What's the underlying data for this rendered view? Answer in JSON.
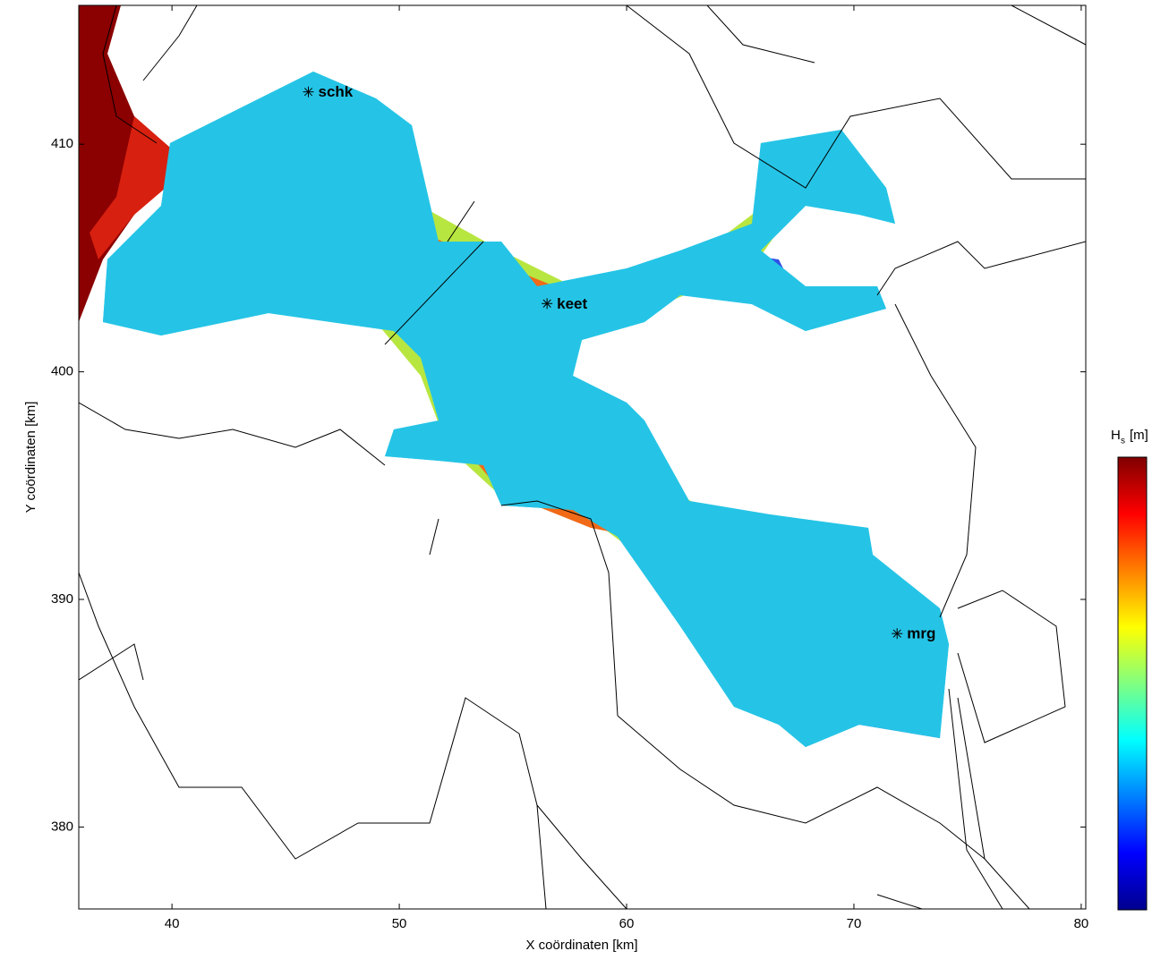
{
  "chart_data": {
    "type": "map",
    "xlabel": "X coördinaten [km]",
    "ylabel": "Y coördinaten [km]",
    "xlim": [
      35.9,
      80.2
    ],
    "ylim": [
      376.4,
      416.1
    ],
    "xticks": [
      40,
      50,
      60,
      70,
      80
    ],
    "yticks": [
      380,
      390,
      400,
      410
    ],
    "stations": [
      {
        "name": "schk",
        "x": 46.0,
        "y": 412.3
      },
      {
        "name": "keet",
        "x": 56.5,
        "y": 403.0
      },
      {
        "name": "mrg",
        "x": 71.9,
        "y": 388.5
      }
    ],
    "colorbar": {
      "symbol": "H",
      "subscript": "s",
      "unit": "[m]",
      "colormap": [
        "#00008f",
        "#0000ff",
        "#0080ff",
        "#00ffff",
        "#80ff80",
        "#ffff00",
        "#ff8000",
        "#ff0000",
        "#800000"
      ]
    }
  }
}
